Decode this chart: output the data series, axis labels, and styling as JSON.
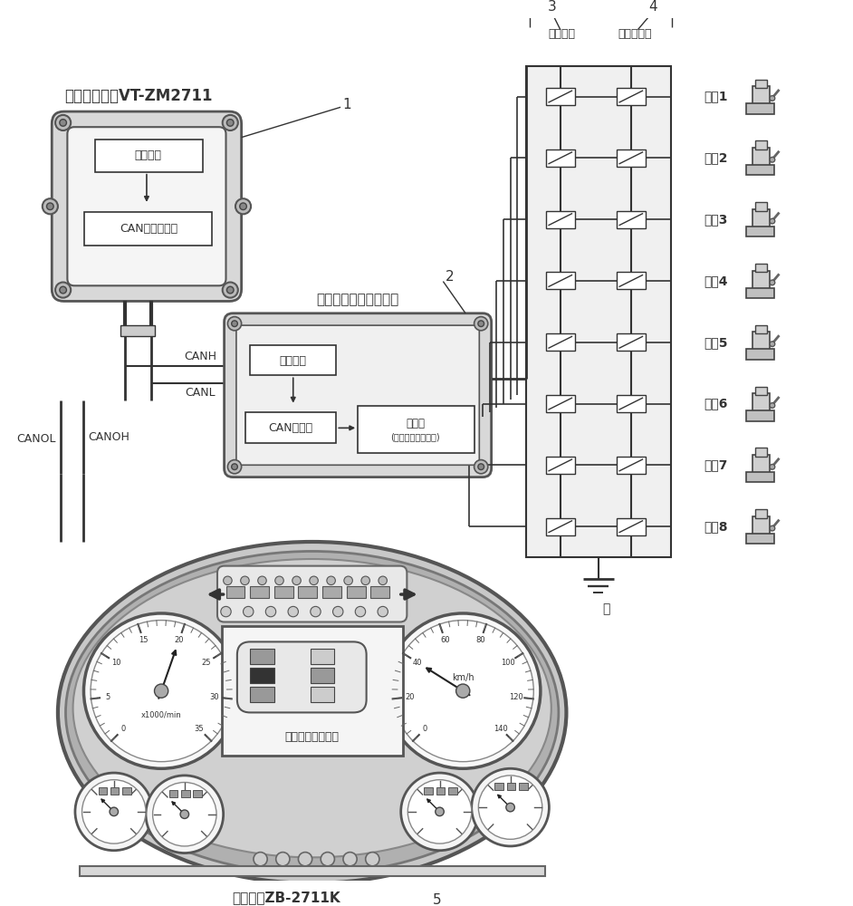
{
  "bg_color": "#ffffff",
  "lc": "#333333",
  "seats": [
    "座椅1",
    "座椅2",
    "座椅3",
    "座椅4",
    "座椅5",
    "座椅6",
    "座椅7",
    "座椅8"
  ],
  "module1_label": "仪表主站模块VT-ZM2711",
  "module1_inner1": "电源模块",
  "module1_inner2": "CAN接收发送器",
  "module2_label": "车载安全带综合控制器",
  "module2_inner1": "电源模块",
  "module2_inner2": "CAN发送器",
  "module2_inner3": "单片机",
  "module2_inner3b": "(信号采集处理单元)",
  "label1": "1",
  "label2": "2",
  "label3": "3",
  "label4": "4",
  "label5": "5",
  "canh": "CANH",
  "canl": "CANL",
  "canol": "CANOL",
  "canoh": "CANOH",
  "pressure_switch": "压力开关",
  "safety_switch": "安全带开关",
  "ground": "地",
  "dashboard_label": "威帝仪表ZB-2711K",
  "seatbelt_label": "安全带报警布置图",
  "rpm_label": "x1000/min",
  "kmh_label": "km/h",
  "rpm_ticks": [
    "0",
    "5",
    "10",
    "15",
    "20",
    "25",
    "30",
    "35"
  ],
  "spd_ticks": [
    "0",
    "20",
    "40",
    "60",
    "80",
    "100",
    "120",
    "140"
  ]
}
